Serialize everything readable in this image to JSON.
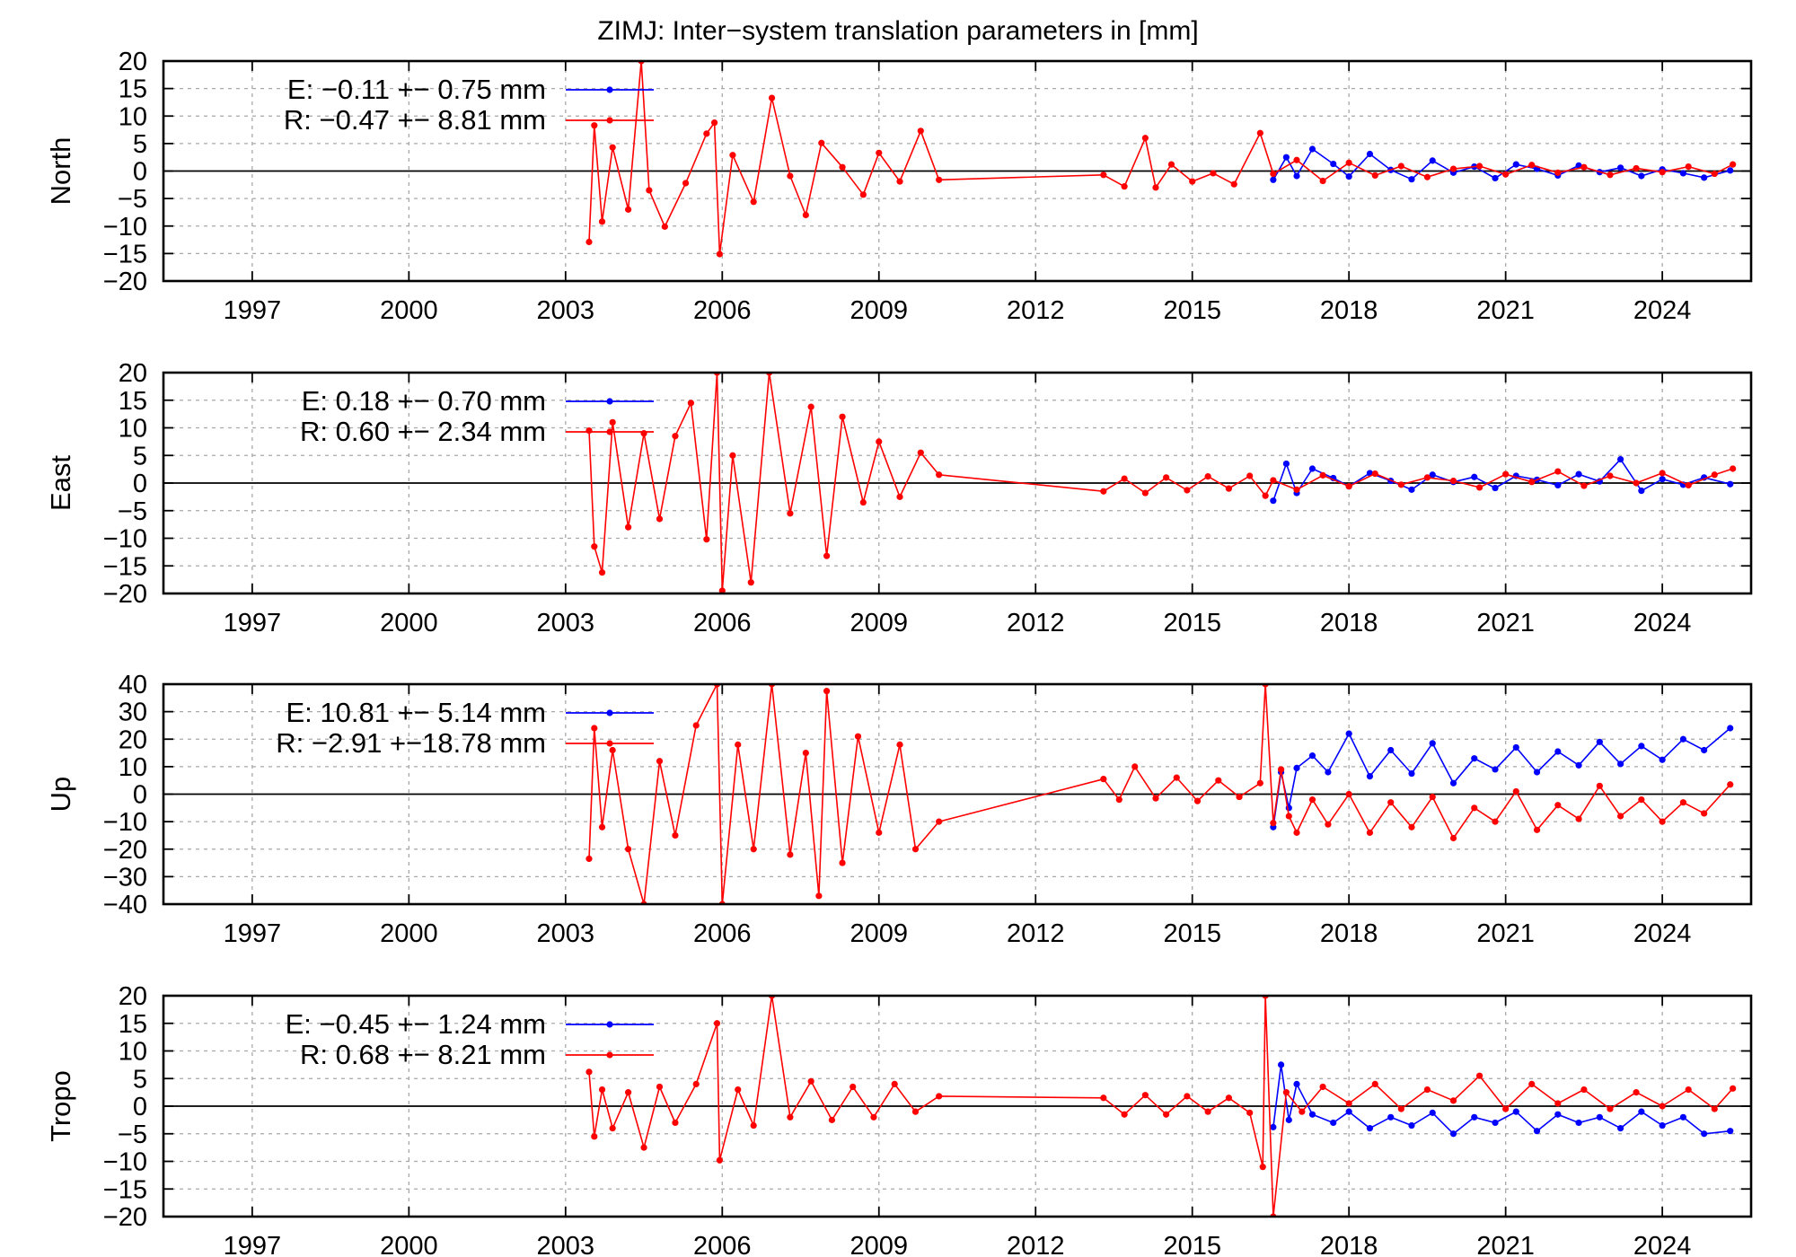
{
  "chart_data": {
    "type": "scatter",
    "title": "ZIMJ: Inter−system translation parameters in [mm]",
    "xlim": [
      1995.3,
      2025.7
    ],
    "x_ticks": [
      "1997",
      "2000",
      "2003",
      "2006",
      "2009",
      "2012",
      "2015",
      "2018",
      "2021",
      "2024"
    ],
    "grid": true,
    "legend_placement": "top-left",
    "series_colors": {
      "E": "#0000ff",
      "R": "#ff0000"
    },
    "panels": [
      {
        "ylabel": "North",
        "ylim": [
          -20,
          20
        ],
        "y_ticks": [
          "20",
          "15",
          "10",
          "5",
          "0",
          "−5",
          "−10",
          "−15",
          "−20"
        ],
        "legend": [
          {
            "key": "E",
            "label": "E:  −0.11 +− 0.75 mm"
          },
          {
            "key": "R",
            "label": "R:  −0.47 +− 8.81 mm"
          }
        ],
        "series": [
          {
            "name": "E",
            "x": [
              2016.55,
              2016.8,
              2017.0,
              2017.3,
              2017.7,
              2018.0,
              2018.4,
              2018.8,
              2019.2,
              2019.6,
              2020.0,
              2020.4,
              2020.8,
              2021.2,
              2021.6,
              2022.0,
              2022.4,
              2022.8,
              2023.2,
              2023.6,
              2024.0,
              2024.4,
              2024.8,
              2025.3
            ],
            "y": [
              -1.6,
              2.5,
              -0.9,
              4.0,
              1.3,
              -1.0,
              3.1,
              0.2,
              -1.5,
              1.9,
              -0.3,
              0.8,
              -1.3,
              1.2,
              0.4,
              -0.8,
              1.0,
              -0.2,
              0.6,
              -0.9,
              0.3,
              -0.4,
              -1.2,
              0.1
            ]
          },
          {
            "name": "R",
            "x": [
              2003.45,
              2003.55,
              2003.7,
              2003.9,
              2004.2,
              2004.45,
              2004.6,
              2004.9,
              2005.3,
              2005.7,
              2005.85,
              2005.95,
              2006.2,
              2006.6,
              2006.95,
              2007.3,
              2007.6,
              2007.9,
              2008.3,
              2008.7,
              2009.0,
              2009.4,
              2009.8,
              2010.15,
              2013.3,
              2013.7,
              2014.1,
              2014.3,
              2014.6,
              2015.0,
              2015.4,
              2015.8,
              2016.3,
              2016.55,
              2017.0,
              2017.5,
              2018.0,
              2018.5,
              2019.0,
              2019.5,
              2020.0,
              2020.5,
              2021.0,
              2021.5,
              2022.0,
              2022.5,
              2023.0,
              2023.5,
              2024.0,
              2024.5,
              2025.0,
              2025.35
            ],
            "y": [
              -12.9,
              8.3,
              -9.2,
              4.3,
              -7.0,
              20.0,
              -3.5,
              -10.1,
              -2.2,
              6.8,
              8.8,
              -15.1,
              2.9,
              -5.6,
              13.3,
              -0.9,
              -8.0,
              5.1,
              0.7,
              -4.3,
              3.3,
              -1.9,
              7.3,
              -1.6,
              -0.7,
              -2.8,
              6.0,
              -3.0,
              1.2,
              -1.9,
              -0.4,
              -2.4,
              6.9,
              -0.5,
              2.0,
              -1.8,
              1.5,
              -0.8,
              0.9,
              -1.1,
              0.4,
              0.9,
              -0.6,
              1.1,
              -0.3,
              0.7,
              -0.7,
              0.5,
              -0.2,
              0.8,
              -0.5,
              1.2
            ]
          }
        ]
      },
      {
        "ylabel": "East",
        "ylim": [
          -20,
          20
        ],
        "y_ticks": [
          "20",
          "15",
          "10",
          "5",
          "0",
          "−5",
          "−10",
          "−15",
          "−20"
        ],
        "legend": [
          {
            "key": "E",
            "label": "E:   0.18 +− 0.70 mm"
          },
          {
            "key": "R",
            "label": "R:   0.60 +− 2.34 mm"
          }
        ],
        "series": [
          {
            "name": "E",
            "x": [
              2016.55,
              2016.8,
              2017.0,
              2017.3,
              2017.7,
              2018.0,
              2018.4,
              2018.8,
              2019.2,
              2019.6,
              2020.0,
              2020.4,
              2020.8,
              2021.2,
              2021.6,
              2022.0,
              2022.4,
              2022.8,
              2023.2,
              2023.6,
              2024.0,
              2024.4,
              2024.8,
              2025.3
            ],
            "y": [
              -3.2,
              3.5,
              -1.8,
              2.6,
              0.9,
              -0.6,
              1.8,
              0.4,
              -1.2,
              1.5,
              0.2,
              1.1,
              -0.9,
              1.3,
              0.6,
              -0.4,
              1.6,
              0.3,
              4.3,
              -1.4,
              0.7,
              -0.3,
              1.0,
              -0.2
            ]
          },
          {
            "name": "R",
            "x": [
              2003.45,
              2003.55,
              2003.7,
              2003.9,
              2004.2,
              2004.5,
              2004.8,
              2005.1,
              2005.4,
              2005.7,
              2005.9,
              2006.0,
              2006.2,
              2006.55,
              2006.9,
              2007.3,
              2007.7,
              2008.0,
              2008.3,
              2008.7,
              2009.0,
              2009.4,
              2009.8,
              2010.15,
              2013.3,
              2013.7,
              2014.1,
              2014.5,
              2014.9,
              2015.3,
              2015.7,
              2016.1,
              2016.4,
              2016.55,
              2017.0,
              2017.5,
              2018.0,
              2018.5,
              2019.0,
              2019.5,
              2020.0,
              2020.5,
              2021.0,
              2021.5,
              2022.0,
              2022.5,
              2023.0,
              2023.5,
              2024.0,
              2024.5,
              2025.0,
              2025.35
            ],
            "y": [
              9.5,
              -11.5,
              -16.2,
              11.0,
              -8.0,
              9.0,
              -6.5,
              8.5,
              14.5,
              -10.2,
              20.0,
              -19.5,
              5.0,
              -18.0,
              20.0,
              -5.5,
              13.8,
              -13.2,
              12.0,
              -3.5,
              7.5,
              -2.5,
              5.5,
              1.5,
              -1.5,
              0.8,
              -1.8,
              1.0,
              -1.3,
              1.2,
              -1.0,
              1.3,
              -2.3,
              0.5,
              -1.2,
              1.4,
              -0.6,
              1.7,
              -0.3,
              1.0,
              0.4,
              -0.8,
              1.6,
              0.2,
              2.1,
              -0.5,
              1.3,
              0.0,
              1.8,
              -0.4,
              1.5,
              2.6
            ]
          }
        ]
      },
      {
        "ylabel": "Up",
        "ylim": [
          -40,
          40
        ],
        "y_ticks": [
          "40",
          "30",
          "20",
          "10",
          "0",
          "−10",
          "−20",
          "−30",
          "−40"
        ],
        "legend": [
          {
            "key": "E",
            "label": "E:  10.81 +− 5.14 mm"
          },
          {
            "key": "R",
            "label": "R:  −2.91 +−18.78 mm"
          }
        ],
        "series": [
          {
            "name": "E",
            "x": [
              2016.55,
              2016.7,
              2016.85,
              2017.0,
              2017.3,
              2017.6,
              2018.0,
              2018.4,
              2018.8,
              2019.2,
              2019.6,
              2020.0,
              2020.4,
              2020.8,
              2021.2,
              2021.6,
              2022.0,
              2022.4,
              2022.8,
              2023.2,
              2023.6,
              2024.0,
              2024.4,
              2024.8,
              2025.3
            ],
            "y": [
              -12.0,
              8.0,
              -5.0,
              9.5,
              14.0,
              8.0,
              22.0,
              6.5,
              16.0,
              7.5,
              18.5,
              4.0,
              13.0,
              9.0,
              17.0,
              8.0,
              15.5,
              10.5,
              19.0,
              11.0,
              17.5,
              12.5,
              20.0,
              16.0,
              24.0
            ]
          },
          {
            "name": "R",
            "x": [
              2003.45,
              2003.55,
              2003.7,
              2003.9,
              2004.2,
              2004.5,
              2004.8,
              2005.1,
              2005.5,
              2005.9,
              2006.0,
              2006.3,
              2006.6,
              2006.95,
              2007.3,
              2007.6,
              2007.85,
              2008.0,
              2008.3,
              2008.6,
              2009.0,
              2009.4,
              2009.7,
              2010.15,
              2013.3,
              2013.6,
              2013.9,
              2014.3,
              2014.7,
              2015.1,
              2015.5,
              2015.9,
              2016.3,
              2016.4,
              2016.55,
              2016.7,
              2016.85,
              2017.0,
              2017.3,
              2017.6,
              2018.0,
              2018.4,
              2018.8,
              2019.2,
              2019.6,
              2020.0,
              2020.4,
              2020.8,
              2021.2,
              2021.6,
              2022.0,
              2022.4,
              2022.8,
              2023.2,
              2023.6,
              2024.0,
              2024.4,
              2024.8,
              2025.3
            ],
            "y": [
              -23.5,
              24.0,
              -12.0,
              16.0,
              -20.0,
              -40.0,
              12.0,
              -15.0,
              25.0,
              40.0,
              -40.0,
              18.0,
              -20.0,
              40.0,
              -22.0,
              15.0,
              -37.0,
              37.5,
              -25.0,
              21.0,
              -14.0,
              18.0,
              -20.0,
              -10.0,
              5.5,
              -2.0,
              10.0,
              -1.5,
              6.0,
              -2.5,
              5.0,
              -1.0,
              4.0,
              40.0,
              -10.5,
              9.0,
              -8.0,
              -14.0,
              -2.0,
              -11.0,
              0.0,
              -14.0,
              -3.0,
              -12.0,
              -1.0,
              -16.0,
              -5.0,
              -10.0,
              1.0,
              -13.0,
              -4.0,
              -9.0,
              3.0,
              -8.0,
              -2.0,
              -10.0,
              -3.0,
              -7.0,
              3.5
            ]
          }
        ]
      },
      {
        "ylabel": "Tropo",
        "ylim": [
          -20,
          20
        ],
        "y_ticks": [
          "20",
          "15",
          "10",
          "5",
          "0",
          "−5",
          "−10",
          "−15",
          "−20"
        ],
        "legend": [
          {
            "key": "E",
            "label": "E:  −0.45 +− 1.24 mm"
          },
          {
            "key": "R",
            "label": "R:   0.68 +− 8.21 mm"
          }
        ],
        "series": [
          {
            "name": "E",
            "x": [
              2016.55,
              2016.7,
              2016.85,
              2017.0,
              2017.3,
              2017.7,
              2018.0,
              2018.4,
              2018.8,
              2019.2,
              2019.6,
              2020.0,
              2020.4,
              2020.8,
              2021.2,
              2021.6,
              2022.0,
              2022.4,
              2022.8,
              2023.2,
              2023.6,
              2024.0,
              2024.4,
              2024.8,
              2025.3
            ],
            "y": [
              -3.8,
              7.5,
              -2.5,
              4.0,
              -1.5,
              -3.0,
              -1.0,
              -4.0,
              -2.0,
              -3.5,
              -1.2,
              -5.0,
              -2.0,
              -3.0,
              -1.0,
              -4.5,
              -1.5,
              -3.0,
              -2.0,
              -4.0,
              -1.0,
              -3.5,
              -2.0,
              -5.0,
              -4.5
            ]
          },
          {
            "name": "R",
            "x": [
              2003.45,
              2003.55,
              2003.7,
              2003.9,
              2004.2,
              2004.5,
              2004.8,
              2005.1,
              2005.5,
              2005.9,
              2005.95,
              2006.3,
              2006.6,
              2006.95,
              2007.3,
              2007.7,
              2008.1,
              2008.5,
              2008.9,
              2009.3,
              2009.7,
              2010.15,
              2013.3,
              2013.7,
              2014.1,
              2014.5,
              2014.9,
              2015.3,
              2015.7,
              2016.1,
              2016.35,
              2016.4,
              2016.55,
              2016.8,
              2017.1,
              2017.5,
              2018.0,
              2018.5,
              2019.0,
              2019.5,
              2020.0,
              2020.5,
              2021.0,
              2021.5,
              2022.0,
              2022.5,
              2023.0,
              2023.5,
              2024.0,
              2024.5,
              2025.0,
              2025.35
            ],
            "y": [
              6.2,
              -5.5,
              3.0,
              -4.0,
              2.5,
              -7.5,
              3.5,
              -3.0,
              4.0,
              15.0,
              -9.8,
              3.0,
              -3.5,
              20.0,
              -2.0,
              4.5,
              -2.5,
              3.5,
              -2.0,
              4.0,
              -1.0,
              1.8,
              1.5,
              -1.5,
              2.0,
              -1.5,
              1.8,
              -1.0,
              1.5,
              -1.2,
              -11.0,
              20.0,
              -20.0,
              2.5,
              -1.0,
              3.5,
              0.5,
              4.0,
              -0.5,
              3.0,
              1.0,
              5.5,
              -0.5,
              4.0,
              0.5,
              3.0,
              -0.5,
              2.5,
              0.0,
              3.0,
              -0.5,
              3.2
            ]
          }
        ]
      }
    ]
  }
}
